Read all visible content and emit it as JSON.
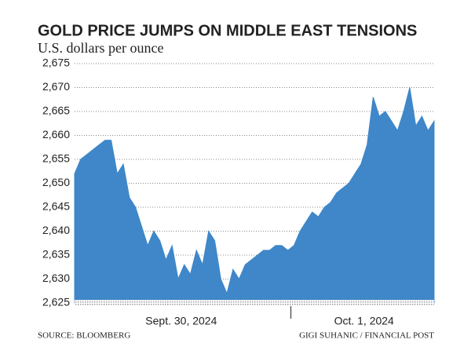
{
  "chart_data": {
    "type": "area",
    "title": "GOLD PRICE JUMPS ON MIDDLE EAST TENSIONS",
    "subtitle": "U.S. dollars per ounce",
    "source": "SOURCE: BLOOMBERG",
    "credit": "GIGI SUHANIC / FINANCIAL POST",
    "color": "#3f87c8",
    "grid": true,
    "ylim": [
      2625,
      2675
    ],
    "yticks": [
      {
        "value": 2625,
        "label": "2,625"
      },
      {
        "value": 2630,
        "label": "2,630"
      },
      {
        "value": 2635,
        "label": "2,635"
      },
      {
        "value": 2640,
        "label": "2,640"
      },
      {
        "value": 2645,
        "label": "2,645"
      },
      {
        "value": 2650,
        "label": "2,650"
      },
      {
        "value": 2655,
        "label": "2,655"
      },
      {
        "value": 2660,
        "label": "2,660"
      },
      {
        "value": 2665,
        "label": "2,665"
      },
      {
        "value": 2670,
        "label": "2,670"
      },
      {
        "value": 2675,
        "label": "2,675"
      }
    ],
    "categories": [
      "Sept. 30, 2024",
      "Sept. 30, 2024",
      "Sept. 30, 2024",
      "Sept. 30, 2024",
      "Sept. 30, 2024",
      "Sept. 30, 2024",
      "Sept. 30, 2024",
      "Sept. 30, 2024",
      "Sept. 30, 2024",
      "Sept. 30, 2024",
      "Sept. 30, 2024",
      "Sept. 30, 2024",
      "Sept. 30, 2024",
      "Sept. 30, 2024",
      "Sept. 30, 2024",
      "Sept. 30, 2024",
      "Sept. 30, 2024",
      "Sept. 30, 2024",
      "Sept. 30, 2024",
      "Sept. 30, 2024",
      "Sept. 30, 2024",
      "Sept. 30, 2024",
      "Sept. 30, 2024",
      "Sept. 30, 2024",
      "Sept. 30, 2024",
      "Sept. 30, 2024",
      "Sept. 30, 2024",
      "Sept. 30, 2024",
      "Sept. 30, 2024",
      "Sept. 30, 2024",
      "Sept. 30, 2024",
      "Sept. 30, 2024",
      "Sept. 30, 2024",
      "Sept. 30, 2024",
      "Sept. 30, 2024",
      "Sept. 30, 2024",
      "Oct. 1, 2024",
      "Oct. 1, 2024",
      "Oct. 1, 2024",
      "Oct. 1, 2024",
      "Oct. 1, 2024",
      "Oct. 1, 2024",
      "Oct. 1, 2024",
      "Oct. 1, 2024",
      "Oct. 1, 2024",
      "Oct. 1, 2024",
      "Oct. 1, 2024",
      "Oct. 1, 2024",
      "Oct. 1, 2024",
      "Oct. 1, 2024",
      "Oct. 1, 2024",
      "Oct. 1, 2024",
      "Oct. 1, 2024",
      "Oct. 1, 2024",
      "Oct. 1, 2024",
      "Oct. 1, 2024",
      "Oct. 1, 2024",
      "Oct. 1, 2024",
      "Oct. 1, 2024",
      "Oct. 1, 2024"
    ],
    "values": [
      2652,
      2655,
      2656,
      2657,
      2658,
      2659,
      2659,
      2652,
      2654,
      2647,
      2645,
      2641,
      2637,
      2640,
      2638,
      2634,
      2637,
      2630,
      2633,
      2631,
      2636,
      2633,
      2640,
      2638,
      2630,
      2627,
      2632,
      2630,
      2633,
      2634,
      2635,
      2636,
      2636,
      2637,
      2637,
      2636,
      2637,
      2640,
      2642,
      2644,
      2643,
      2645,
      2646,
      2648,
      2649,
      2650,
      2652,
      2654,
      2658,
      2668,
      2664,
      2665,
      2663,
      2661,
      2665,
      2670,
      2662,
      2664,
      2661,
      2663
    ]
  }
}
